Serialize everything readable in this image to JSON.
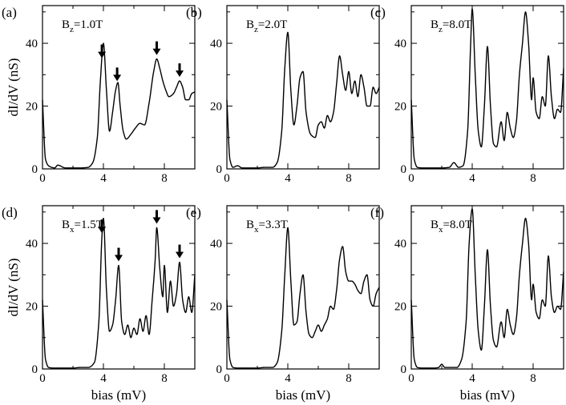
{
  "chart_data": [
    {
      "panel": "(a)",
      "field_symbol": "B",
      "field_axis": "z",
      "field_value": "=1.0T",
      "type": "line",
      "xlim": [
        0,
        10
      ],
      "ylim": [
        0,
        52
      ],
      "xticks": [
        "0",
        "4",
        "8"
      ],
      "yticks": [
        "0",
        "20",
        "40"
      ],
      "ylabel": "dI/dV (nS)",
      "xlabel": "",
      "x": [
        0,
        0.2,
        0.4,
        0.6,
        0.8,
        1.0,
        1.5,
        2.0,
        2.5,
        3.0,
        3.3,
        3.6,
        3.8,
        4.0,
        4.2,
        4.4,
        4.6,
        4.8,
        4.95,
        5.1,
        5.3,
        5.5,
        5.8,
        6.1,
        6.4,
        6.7,
        7.0,
        7.3,
        7.5,
        7.7,
        7.9,
        8.1,
        8.3,
        8.6,
        8.8,
        9.0,
        9.2,
        9.4,
        9.6,
        9.8,
        10.0
      ],
      "y": [
        22,
        3,
        1,
        0.5,
        0.3,
        1.2,
        0.3,
        0.3,
        0.3,
        0.5,
        2,
        10,
        28,
        40,
        25,
        12,
        18,
        25,
        27.5,
        20,
        12,
        9.5,
        11,
        13,
        14.5,
        14,
        21,
        31,
        35,
        32,
        28,
        25,
        23,
        24,
        26,
        28,
        26,
        22,
        22,
        24,
        24.5
      ],
      "arrows_at": [
        3.9,
        4.9,
        7.5,
        9.0
      ]
    },
    {
      "panel": "(b)",
      "field_symbol": "B",
      "field_axis": "z",
      "field_value": "=2.0T",
      "type": "line",
      "xlim": [
        0,
        10
      ],
      "ylim": [
        0,
        52
      ],
      "xticks": [
        "0",
        "4",
        "8"
      ],
      "yticks": [
        "0",
        "20",
        "40"
      ],
      "ylabel": "",
      "xlabel": "",
      "x": [
        0,
        0.2,
        0.4,
        0.7,
        1.0,
        1.5,
        2.0,
        2.5,
        3.0,
        3.3,
        3.6,
        3.8,
        4.0,
        4.2,
        4.4,
        4.6,
        4.8,
        5.0,
        5.2,
        5.5,
        5.8,
        6.0,
        6.2,
        6.4,
        6.6,
        6.8,
        7.0,
        7.2,
        7.4,
        7.6,
        7.8,
        8.0,
        8.2,
        8.4,
        8.6,
        8.8,
        9.0,
        9.2,
        9.4,
        9.6,
        9.8,
        10.0
      ],
      "y": [
        22,
        3,
        0.5,
        1,
        0.3,
        0.3,
        0.3,
        0.5,
        0.5,
        2,
        12,
        32,
        43.5,
        25,
        14,
        20,
        29,
        31,
        18,
        11,
        10,
        14,
        15,
        13,
        17,
        15,
        18,
        27,
        36,
        30,
        25,
        31,
        24,
        28,
        23,
        30,
        26,
        20,
        20,
        26,
        24,
        26
      ],
      "arrows_at": []
    },
    {
      "panel": "(c)",
      "field_symbol": "B",
      "field_axis": "z",
      "field_value": "=8.0T",
      "type": "line",
      "xlim": [
        0,
        10
      ],
      "ylim": [
        0,
        52
      ],
      "xticks": [
        "0",
        "4",
        "8"
      ],
      "yticks": [
        "0",
        "20",
        "40"
      ],
      "ylabel": "",
      "xlabel": "",
      "x": [
        0,
        0.2,
        0.4,
        0.7,
        1.0,
        1.5,
        2.0,
        2.5,
        2.8,
        3.1,
        3.4,
        3.7,
        3.9,
        4.0,
        4.2,
        4.4,
        4.6,
        4.8,
        5.0,
        5.2,
        5.4,
        5.6,
        5.9,
        6.1,
        6.3,
        6.5,
        6.7,
        6.9,
        7.1,
        7.3,
        7.5,
        7.7,
        7.9,
        8.0,
        8.2,
        8.4,
        8.6,
        8.8,
        9.0,
        9.2,
        9.4,
        9.6,
        9.8,
        10.0
      ],
      "y": [
        22,
        3,
        0.5,
        0.3,
        0.3,
        0.3,
        0.3,
        0.5,
        2,
        0.5,
        1,
        12,
        40,
        51,
        30,
        12,
        7,
        20,
        39,
        20,
        8,
        7,
        15,
        9,
        18,
        13,
        10,
        15,
        30,
        40,
        50,
        40,
        22,
        29,
        18,
        16,
        23,
        20,
        36,
        23,
        16,
        19,
        18,
        32
      ],
      "arrows_at": []
    },
    {
      "panel": "(d)",
      "field_symbol": "B",
      "field_axis": "x",
      "field_value": "=1.5T",
      "type": "line",
      "xlim": [
        0,
        10
      ],
      "ylim": [
        0,
        52
      ],
      "xticks": [
        "0",
        "4",
        "8"
      ],
      "yticks": [
        "0",
        "20",
        "40"
      ],
      "ylabel": "dI/dV (nS)",
      "xlabel": "bias (mV)",
      "x": [
        0,
        0.2,
        0.4,
        0.7,
        1.0,
        1.5,
        2.0,
        2.5,
        3.0,
        3.4,
        3.7,
        3.9,
        4.0,
        4.2,
        4.4,
        4.6,
        4.8,
        5.0,
        5.2,
        5.4,
        5.6,
        5.8,
        6.0,
        6.2,
        6.4,
        6.6,
        6.8,
        7.0,
        7.2,
        7.4,
        7.5,
        7.7,
        7.9,
        8.0,
        8.2,
        8.4,
        8.6,
        8.8,
        9.0,
        9.2,
        9.4,
        9.6,
        9.8,
        10.0
      ],
      "y": [
        22,
        3,
        0.5,
        0.3,
        0.3,
        0.3,
        0.3,
        0.5,
        0.5,
        2,
        15,
        42,
        48,
        25,
        12,
        14,
        22,
        33,
        15,
        11,
        14,
        10,
        13,
        11,
        16,
        12,
        17,
        11,
        22,
        35,
        45,
        32,
        23,
        33,
        18,
        28,
        20,
        24,
        34,
        22,
        18,
        23,
        18,
        30
      ],
      "arrows_at": [
        3.9,
        5.0,
        7.5,
        9.0
      ]
    },
    {
      "panel": "(e)",
      "field_symbol": "B",
      "field_axis": "x",
      "field_value": "=3.3T",
      "type": "line",
      "xlim": [
        0,
        10
      ],
      "ylim": [
        0,
        52
      ],
      "xticks": [
        "0",
        "4",
        "8"
      ],
      "yticks": [
        "0",
        "20",
        "40"
      ],
      "ylabel": "",
      "xlabel": "bias (mV)",
      "x": [
        0,
        0.2,
        0.4,
        0.7,
        1.0,
        1.5,
        2.0,
        2.5,
        3.0,
        3.3,
        3.6,
        3.8,
        4.0,
        4.2,
        4.4,
        4.6,
        4.8,
        5.0,
        5.2,
        5.4,
        5.6,
        5.8,
        6.0,
        6.2,
        6.4,
        6.6,
        6.8,
        7.0,
        7.2,
        7.4,
        7.6,
        7.8,
        8.0,
        8.2,
        8.4,
        8.6,
        8.8,
        9.0,
        9.2,
        9.4,
        9.6,
        9.8,
        10.0
      ],
      "y": [
        22,
        3,
        0.5,
        0.3,
        0.3,
        0.3,
        0.3,
        0.5,
        0.5,
        2,
        12,
        30,
        45,
        28,
        14,
        15,
        24,
        30,
        18,
        11,
        10,
        12,
        14,
        12,
        14,
        16,
        20,
        19,
        25,
        35,
        39,
        31,
        28,
        28,
        27,
        25,
        24,
        28,
        30,
        22,
        20,
        24,
        26
      ],
      "arrows_at": []
    },
    {
      "panel": "(f)",
      "field_symbol": "B",
      "field_axis": "x",
      "field_value": "=8.0T",
      "type": "line",
      "xlim": [
        0,
        10
      ],
      "ylim": [
        0,
        52
      ],
      "xticks": [
        "0",
        "4",
        "8"
      ],
      "yticks": [
        "0",
        "20",
        "40"
      ],
      "ylabel": "",
      "xlabel": "bias (mV)",
      "x": [
        0,
        0.2,
        0.4,
        0.7,
        1.0,
        1.5,
        1.8,
        2.0,
        2.2,
        2.5,
        3.0,
        3.3,
        3.6,
        3.8,
        4.0,
        4.2,
        4.4,
        4.6,
        4.8,
        5.0,
        5.2,
        5.4,
        5.6,
        5.9,
        6.1,
        6.3,
        6.5,
        6.7,
        6.9,
        7.1,
        7.3,
        7.5,
        7.7,
        7.9,
        8.0,
        8.2,
        8.4,
        8.6,
        8.8,
        9.0,
        9.2,
        9.4,
        9.6,
        9.8,
        10.0
      ],
      "y": [
        22,
        3,
        0.5,
        0.3,
        0.3,
        0.3,
        0.5,
        1.5,
        0.5,
        0.5,
        0.5,
        3,
        15,
        40,
        51,
        30,
        12,
        6,
        20,
        38,
        20,
        9,
        7,
        15,
        10,
        19,
        14,
        11,
        16,
        30,
        40,
        48,
        40,
        22,
        27,
        18,
        16,
        22,
        20,
        36,
        23,
        18,
        20,
        19,
        31
      ],
      "arrows_at": []
    }
  ]
}
